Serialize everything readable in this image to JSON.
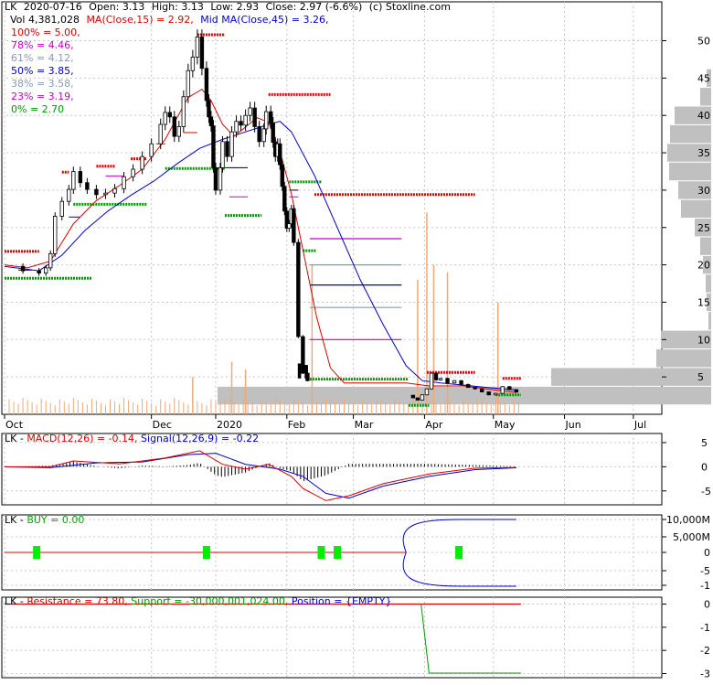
{
  "chart_data": [
    {
      "type": "candlestick",
      "symbol": "LK",
      "header": {
        "line1": [
          "LK",
          "2020-07-16",
          "Open: 3.13",
          "High: 3.13",
          "Low: 2.93",
          "Close: 2.97 (-6.6%)",
          "(c) Stoxline.com"
        ],
        "vol_label": "Vol 4,381,028",
        "ma15_label": "MA(Close,15) = 2.92,",
        "ma45_label": "Mid MA(Close,45) = 3.26,"
      },
      "fib_levels": [
        {
          "label": "100% = 5.00,",
          "color": "#dd0000"
        },
        {
          "label": "78% = 4.46,",
          "color": "#cc00cc"
        },
        {
          "label": "61% = 4.12,",
          "color": "#8899bb"
        },
        {
          "label": "50% = 3.85,",
          "color": "#0000cc"
        },
        {
          "label": "38% = 3.58,",
          "color": "#8899bb"
        },
        {
          "label": "23% = 3.19,",
          "color": "#cc00cc"
        },
        {
          "label": "0% = 2.70",
          "color": "#009900"
        }
      ],
      "y_ticks": [
        "50",
        "45",
        "40",
        "35",
        "30",
        "25",
        "20",
        "15",
        "10",
        "5"
      ],
      "y_tick_values": [
        50,
        45,
        40,
        35,
        30,
        25,
        20,
        15,
        10,
        5
      ],
      "ylim": [
        0,
        53
      ],
      "x_labels": [
        "Oct",
        "Dec",
        "2020",
        "Feb",
        "Mar",
        "Apr",
        "May",
        "Jun",
        "Jul"
      ],
      "x_label_days": [
        0,
        64,
        92,
        123,
        152,
        183,
        213,
        244,
        274
      ],
      "x_range_days": [
        0,
        286
      ],
      "close_path": [
        [
          0,
          19.8
        ],
        [
          8,
          19.2
        ],
        [
          15,
          18.9
        ],
        [
          18,
          19.6
        ],
        [
          20,
          21.5
        ],
        [
          22,
          26.5
        ],
        [
          25,
          28.5
        ],
        [
          28,
          30.1
        ],
        [
          30,
          32.5
        ],
        [
          33,
          31
        ],
        [
          36,
          30.1
        ],
        [
          40,
          29.4
        ],
        [
          44,
          29.6
        ],
        [
          48,
          30.2
        ],
        [
          52,
          31.8
        ],
        [
          56,
          32.8
        ],
        [
          60,
          34.5
        ],
        [
          64,
          36.2
        ],
        [
          68,
          38.8
        ],
        [
          70,
          40.4
        ],
        [
          72,
          39.8
        ],
        [
          74,
          37.2
        ],
        [
          76,
          38.5
        ],
        [
          78,
          42.5
        ],
        [
          80,
          46
        ],
        [
          82,
          47.8
        ],
        [
          84,
          50.5
        ],
        [
          86,
          46.3
        ],
        [
          88,
          42
        ],
        [
          89,
          39.8
        ],
        [
          90,
          38.6
        ],
        [
          91,
          33
        ],
        [
          92,
          30
        ],
        [
          94,
          33
        ],
        [
          95,
          36.5
        ],
        [
          97,
          34.5
        ],
        [
          99,
          37.8
        ],
        [
          101,
          39.2
        ],
        [
          103,
          38.7
        ],
        [
          105,
          40
        ],
        [
          107,
          41
        ],
        [
          109,
          38.5
        ],
        [
          111,
          36.5
        ],
        [
          113,
          38.2
        ],
        [
          114,
          40.5
        ],
        [
          116,
          39
        ],
        [
          117,
          36.4
        ],
        [
          118,
          34.5
        ],
        [
          119,
          36.2
        ],
        [
          120,
          33.4
        ],
        [
          121,
          30.5
        ],
        [
          122,
          27.2
        ],
        [
          123,
          24.9
        ],
        [
          124,
          25.5
        ],
        [
          125,
          27.5
        ],
        [
          126,
          23
        ],
        [
          128,
          10.4
        ],
        [
          130,
          5.5
        ],
        [
          132,
          4.5
        ]
      ],
      "candles": [
        {
          "x": 128.5,
          "y1": 4.8,
          "y2": 6.8
        },
        {
          "x": 131.5,
          "y1": 4.8,
          "y2": 6.6
        }
      ],
      "close_path_2": [
        [
          175,
          2.55
        ],
        [
          178,
          2.2
        ],
        [
          180,
          1.9
        ],
        [
          182,
          2.6
        ],
        [
          184,
          3.4
        ],
        [
          186,
          5.5
        ],
        [
          188,
          4.6
        ],
        [
          190,
          4.8
        ],
        [
          193,
          4.2
        ],
        [
          196,
          4.5
        ],
        [
          199,
          4.0
        ],
        [
          202,
          3.6
        ],
        [
          205,
          3.4
        ],
        [
          208,
          3.0
        ],
        [
          211,
          2.6
        ],
        [
          214,
          2.8
        ],
        [
          217,
          3.7
        ],
        [
          220,
          3.3
        ],
        [
          223,
          2.97
        ]
      ],
      "ma15": [
        [
          0,
          20
        ],
        [
          10,
          19.6
        ],
        [
          20,
          20.5
        ],
        [
          30,
          25.5
        ],
        [
          40,
          28.6
        ],
        [
          50,
          30.6
        ],
        [
          60,
          32.8
        ],
        [
          70,
          36.8
        ],
        [
          80,
          42.4
        ],
        [
          86,
          43.5
        ],
        [
          90,
          42
        ],
        [
          95,
          38.8
        ],
        [
          100,
          37.2
        ],
        [
          110,
          39.7
        ],
        [
          115,
          39.1
        ],
        [
          120,
          35.2
        ],
        [
          125,
          29.5
        ],
        [
          130,
          22
        ],
        [
          136,
          13
        ],
        [
          142,
          6.2
        ],
        [
          148,
          4.2
        ],
        [
          175,
          4.2
        ],
        [
          185,
          3.8
        ],
        [
          200,
          3.8
        ],
        [
          210,
          3.4
        ],
        [
          223,
          2.92
        ]
      ],
      "ma45": [
        [
          0,
          19.8
        ],
        [
          15,
          19.2
        ],
        [
          25,
          21.3
        ],
        [
          35,
          24.6
        ],
        [
          45,
          27.2
        ],
        [
          55,
          29.3
        ],
        [
          65,
          31.2
        ],
        [
          75,
          33.5
        ],
        [
          85,
          35.6
        ],
        [
          95,
          36.8
        ],
        [
          105,
          37.8
        ],
        [
          115,
          38.8
        ],
        [
          120,
          39.2
        ],
        [
          125,
          37.8
        ],
        [
          135,
          32
        ],
        [
          145,
          25
        ],
        [
          155,
          18
        ],
        [
          165,
          12
        ],
        [
          175,
          6.5
        ],
        [
          182,
          4.5
        ],
        [
          190,
          4.2
        ],
        [
          200,
          3.9
        ],
        [
          210,
          3.6
        ],
        [
          223,
          3.26
        ]
      ],
      "resistance_segments": [
        {
          "x1": 0,
          "x2": 15,
          "y": 21.8
        },
        {
          "x1": 25,
          "x2": 28,
          "y": 32.4
        },
        {
          "x1": 40,
          "x2": 48,
          "y": 33.2
        },
        {
          "x1": 55,
          "x2": 62,
          "y": 34.2
        },
        {
          "x1": 84,
          "x2": 96,
          "y": 50.8
        },
        {
          "x1": 115,
          "x2": 142,
          "y": 42.8
        },
        {
          "x1": 135,
          "x2": 205,
          "y": 29.4
        },
        {
          "x1": 184,
          "x2": 205,
          "y": 5.6
        },
        {
          "x1": 217,
          "x2": 225,
          "y": 4.8
        }
      ],
      "support_segments": [
        {
          "x1": 0,
          "x2": 38,
          "y": 18.2
        },
        {
          "x1": 30,
          "x2": 62,
          "y": 28.1
        },
        {
          "x1": 70,
          "x2": 96,
          "y": 32.9
        },
        {
          "x1": 96,
          "x2": 112,
          "y": 26.6
        },
        {
          "x1": 124,
          "x2": 138,
          "y": 31.1
        },
        {
          "x1": 130,
          "x2": 136,
          "y": 21.9
        },
        {
          "x1": 133,
          "x2": 176,
          "y": 4.7
        },
        {
          "x1": 176,
          "x2": 185,
          "y": 1.2
        },
        {
          "x1": 214,
          "x2": 225,
          "y": 2.6
        }
      ],
      "dashes": [
        {
          "x1": 6,
          "x2": 12,
          "y": 19.3,
          "color": "#000000"
        },
        {
          "x1": 28,
          "x2": 33,
          "y": 26.4,
          "color": "#0000cc"
        },
        {
          "x1": 44,
          "x2": 52,
          "y": 31.9,
          "color": "#cc00cc"
        },
        {
          "x1": 66,
          "x2": 70,
          "y": 36.2,
          "color": "#dd0000"
        },
        {
          "x1": 78,
          "x2": 84,
          "y": 37.7,
          "color": "#dd0000"
        },
        {
          "x1": 96,
          "x2": 106,
          "y": 33.0,
          "color": "#000000"
        },
        {
          "x1": 98,
          "x2": 106,
          "y": 29.1,
          "color": "#cc00cc"
        },
        {
          "x1": 124,
          "x2": 128,
          "y": 30.0,
          "color": "#000000"
        },
        {
          "x1": 124,
          "x2": 128,
          "y": 29.1,
          "color": "#cc00cc"
        }
      ],
      "fib_lines": [
        {
          "y": 23.5,
          "color": "#cc00cc"
        },
        {
          "y": 20.0,
          "color": "#8899bb"
        },
        {
          "y": 17.3,
          "color": "#0000cc"
        },
        {
          "y": 14.3,
          "color": "#8899bb"
        },
        {
          "y": 10.0,
          "color": "#cc00cc"
        }
      ],
      "volume_spikes": [
        {
          "x": 134,
          "h": 20
        },
        {
          "x": 180,
          "h": 18
        },
        {
          "x": 184,
          "h": 27
        },
        {
          "x": 187,
          "h": 20
        },
        {
          "x": 193,
          "h": 19
        },
        {
          "x": 215,
          "h": 15
        },
        {
          "x": 99,
          "h": 7
        },
        {
          "x": 105,
          "h": 6
        },
        {
          "x": 82,
          "h": 5
        }
      ],
      "volume_profile": [
        {
          "p": 45,
          "w": 5
        },
        {
          "p": 42.5,
          "w": 12
        },
        {
          "p": 40,
          "w": 40
        },
        {
          "p": 37.5,
          "w": 45
        },
        {
          "p": 35,
          "w": 48
        },
        {
          "p": 32.5,
          "w": 46
        },
        {
          "p": 30,
          "w": 36
        },
        {
          "p": 27.5,
          "w": 33
        },
        {
          "p": 25,
          "w": 18
        },
        {
          "p": 22.5,
          "w": 12
        },
        {
          "p": 20,
          "w": 9
        },
        {
          "p": 17.5,
          "w": 6
        },
        {
          "p": 15,
          "w": 5
        },
        {
          "p": 12.5,
          "w": 3
        },
        {
          "p": 10,
          "w": 55
        },
        {
          "p": 7.5,
          "w": 60
        },
        {
          "p": 5,
          "w": 175
        },
        {
          "p": 2.5,
          "w": 540
        }
      ]
    },
    {
      "type": "line",
      "label_parts": [
        "LK",
        " - ",
        "MACD(12,26) = -0.14, ",
        "Signal(12,26,9) = -0.22"
      ],
      "y_ticks": [
        "5",
        "0",
        "-5"
      ],
      "y_tick_values": [
        5,
        0,
        -5
      ],
      "ylim": [
        -7.5,
        6.5
      ],
      "macd": [
        [
          0,
          0
        ],
        [
          20,
          0
        ],
        [
          30,
          1.2
        ],
        [
          50,
          0.6
        ],
        [
          70,
          1.8
        ],
        [
          85,
          3.3
        ],
        [
          95,
          0.5
        ],
        [
          105,
          -0.5
        ],
        [
          115,
          0.5
        ],
        [
          125,
          -2
        ],
        [
          130,
          -4.5
        ],
        [
          140,
          -7
        ],
        [
          150,
          -6
        ],
        [
          165,
          -3.5
        ],
        [
          185,
          -1.5
        ],
        [
          205,
          -0.3
        ],
        [
          223,
          -0.14
        ]
      ],
      "signal": [
        [
          0,
          0
        ],
        [
          20,
          -0.2
        ],
        [
          40,
          0.8
        ],
        [
          60,
          1
        ],
        [
          80,
          2.5
        ],
        [
          92,
          2.8
        ],
        [
          105,
          0.5
        ],
        [
          120,
          -0.5
        ],
        [
          130,
          -2
        ],
        [
          140,
          -5.5
        ],
        [
          150,
          -6.5
        ],
        [
          165,
          -4
        ],
        [
          185,
          -2
        ],
        [
          205,
          -0.6
        ],
        [
          223,
          -0.22
        ]
      ],
      "histogram_sample_days": [
        0,
        223
      ]
    },
    {
      "type": "line",
      "label_parts": [
        "LK",
        " - ",
        "BUY = 0.00"
      ],
      "y_ticks": [
        "10,000M",
        "5,000M",
        "0",
        "-5",
        "-1"
      ],
      "y_tick_values": [
        10000,
        5000,
        0,
        -5,
        -1
      ],
      "buy_markers": [
        14,
        88,
        138,
        145,
        198
      ],
      "overflow_curve_start_day": 175
    },
    {
      "type": "line",
      "label_parts": [
        "LK",
        " - ",
        "Resistance = 73.80, ",
        "Support = -30,000,001,024.00, ",
        "Position = {EMPTY}"
      ],
      "y_ticks": [
        "0",
        "-1",
        "-2",
        "-3"
      ],
      "y_tick_values": [
        0,
        -1,
        -2,
        -3
      ],
      "ylim": [
        -3.1,
        0.1
      ],
      "position_path": [
        [
          181,
          -0.02
        ],
        [
          181.5,
          -0.02
        ],
        [
          185,
          -2.98
        ],
        [
          225,
          -2.98
        ]
      ]
    }
  ]
}
